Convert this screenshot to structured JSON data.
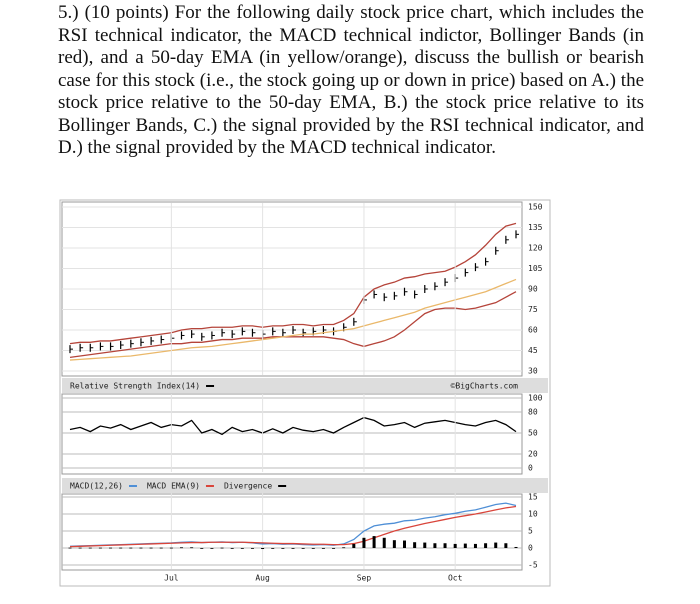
{
  "question": "5.) (10 points) For the following daily stock price chart, which includes the RSI technical indicator, the MACD technical indictor, Bollinger Bands (in red), and a 50-day EMA (in yellow/orange), discuss the bullish or bearish case for this stock (i.e., the stock going up or down in price) based on A.) the stock price relative to the 50-day EMA, B.) the stock price relative to its Bollinger Bands, C.) the signal provided by the RSI technical indicator, and D.) the signal provided by the MACD technical indicator.",
  "source": "©BigCharts.com",
  "chart_data": [
    {
      "type": "stock",
      "xlim": [
        0,
        44
      ],
      "ylim": [
        30,
        150
      ],
      "yticks": [
        30,
        45,
        60,
        75,
        90,
        105,
        120,
        135,
        150
      ],
      "grid": true,
      "series": [
        {
          "color": "#000000",
          "style": "bar",
          "values": [
            46,
            47,
            47,
            48,
            48,
            49,
            50,
            51,
            52,
            53,
            54,
            56,
            57,
            55,
            56,
            58,
            57,
            59,
            58,
            57,
            59,
            58,
            60,
            58,
            59,
            60,
            59,
            62,
            66,
            82,
            86,
            84,
            85,
            88,
            86,
            90,
            92,
            95,
            98,
            102,
            106,
            110,
            118,
            126,
            130
          ]
        },
        {
          "color": "#b5443a",
          "style": "line",
          "values": [
            50,
            51,
            51,
            52,
            52,
            53,
            54,
            55,
            56,
            57,
            58,
            60,
            61,
            61,
            62,
            62,
            62,
            63,
            63,
            62,
            63,
            63,
            64,
            64,
            63,
            64,
            64,
            67,
            72,
            84,
            90,
            93,
            95,
            98,
            99,
            101,
            102,
            103,
            106,
            110,
            115,
            122,
            130,
            136,
            138
          ]
        },
        {
          "color": "#b5443a",
          "style": "line",
          "values": [
            40,
            41,
            42,
            43,
            44,
            45,
            46,
            47,
            48,
            49,
            50,
            50,
            51,
            51,
            52,
            53,
            53,
            54,
            54,
            54,
            55,
            55,
            55,
            55,
            55,
            55,
            54,
            53,
            50,
            48,
            50,
            52,
            55,
            60,
            66,
            72,
            75,
            76,
            76,
            75,
            76,
            78,
            80,
            84,
            88
          ]
        },
        {
          "color": "#eab86a",
          "style": "line",
          "values": [
            38,
            38.5,
            39,
            39.5,
            40,
            40.5,
            41,
            42,
            43,
            44,
            45,
            46,
            47,
            47.5,
            48,
            49,
            50,
            51,
            52,
            53,
            54,
            55,
            56,
            57,
            57,
            58,
            59,
            60,
            61,
            63,
            65,
            67,
            69,
            71,
            73,
            76,
            78,
            80,
            82,
            84,
            86,
            88,
            91,
            94,
            97
          ]
        }
      ]
    },
    {
      "type": "line",
      "xlim": [
        0,
        44
      ],
      "ylim": [
        0,
        100
      ],
      "yticks": [
        0,
        20,
        50,
        80,
        100
      ],
      "grid": true,
      "series": [
        {
          "name": "Relative Strength Index(14)",
          "color": "#000000",
          "style": "line",
          "values": [
            55,
            58,
            52,
            60,
            57,
            62,
            55,
            60,
            65,
            58,
            62,
            60,
            68,
            50,
            55,
            48,
            58,
            52,
            55,
            50,
            56,
            50,
            58,
            54,
            52,
            55,
            50,
            58,
            65,
            72,
            68,
            60,
            62,
            65,
            58,
            64,
            66,
            68,
            65,
            62,
            60,
            65,
            68,
            62,
            52
          ]
        }
      ]
    },
    {
      "type": "line",
      "xlim": [
        0,
        44
      ],
      "ylim": [
        -5,
        15
      ],
      "yticks": [
        -5,
        0,
        5,
        10,
        15
      ],
      "grid": true,
      "xticks": [
        {
          "value": 10,
          "label": "Jul"
        },
        {
          "value": 19,
          "label": "Aug"
        },
        {
          "value": 29,
          "label": "Sep"
        },
        {
          "value": 38,
          "label": "Oct"
        }
      ],
      "series": [
        {
          "name": "MACD(12,26)",
          "color": "#4f8fd6",
          "style": "line",
          "values": [
            0.5,
            0.6,
            0.7,
            0.8,
            0.9,
            1,
            1.1,
            1.2,
            1.3,
            1.4,
            1.5,
            1.7,
            1.8,
            1.6,
            1.7,
            1.8,
            1.6,
            1.7,
            1.5,
            1.2,
            1.3,
            1.1,
            1.2,
            1.0,
            0.9,
            1.0,
            0.8,
            1.2,
            2.5,
            5,
            6.5,
            7,
            7.3,
            8,
            8.2,
            8.8,
            9.2,
            9.8,
            10.2,
            10.8,
            11.2,
            12,
            12.8,
            13.2,
            12.5
          ]
        },
        {
          "name": "MACD EMA(9)",
          "color": "#d9453b",
          "style": "line",
          "values": [
            0.4,
            0.5,
            0.6,
            0.7,
            0.8,
            0.9,
            1,
            1.1,
            1.2,
            1.3,
            1.4,
            1.5,
            1.6,
            1.6,
            1.7,
            1.7,
            1.7,
            1.7,
            1.6,
            1.5,
            1.4,
            1.3,
            1.3,
            1.2,
            1.1,
            1.1,
            1.0,
            1.0,
            1.3,
            2,
            3,
            4,
            5,
            5.8,
            6.5,
            7.2,
            7.8,
            8.4,
            9,
            9.5,
            10,
            10.6,
            11.2,
            11.8,
            12.2
          ]
        },
        {
          "name": "Divergence",
          "color": "#000000",
          "style": "bar",
          "values": [
            0.1,
            0.1,
            0.1,
            0.1,
            0.1,
            0.1,
            0.1,
            0.1,
            0.1,
            0.1,
            0.1,
            0.2,
            0.2,
            0,
            0,
            0.1,
            -0.1,
            0,
            -0.1,
            -0.3,
            -0.1,
            -0.2,
            -0.1,
            -0.2,
            -0.2,
            -0.1,
            -0.2,
            0.2,
            1.2,
            3,
            3.5,
            3,
            2.3,
            2.2,
            1.7,
            1.6,
            1.4,
            1.4,
            1.2,
            1.3,
            1.2,
            1.4,
            1.6,
            1.4,
            0.3
          ]
        }
      ]
    }
  ]
}
